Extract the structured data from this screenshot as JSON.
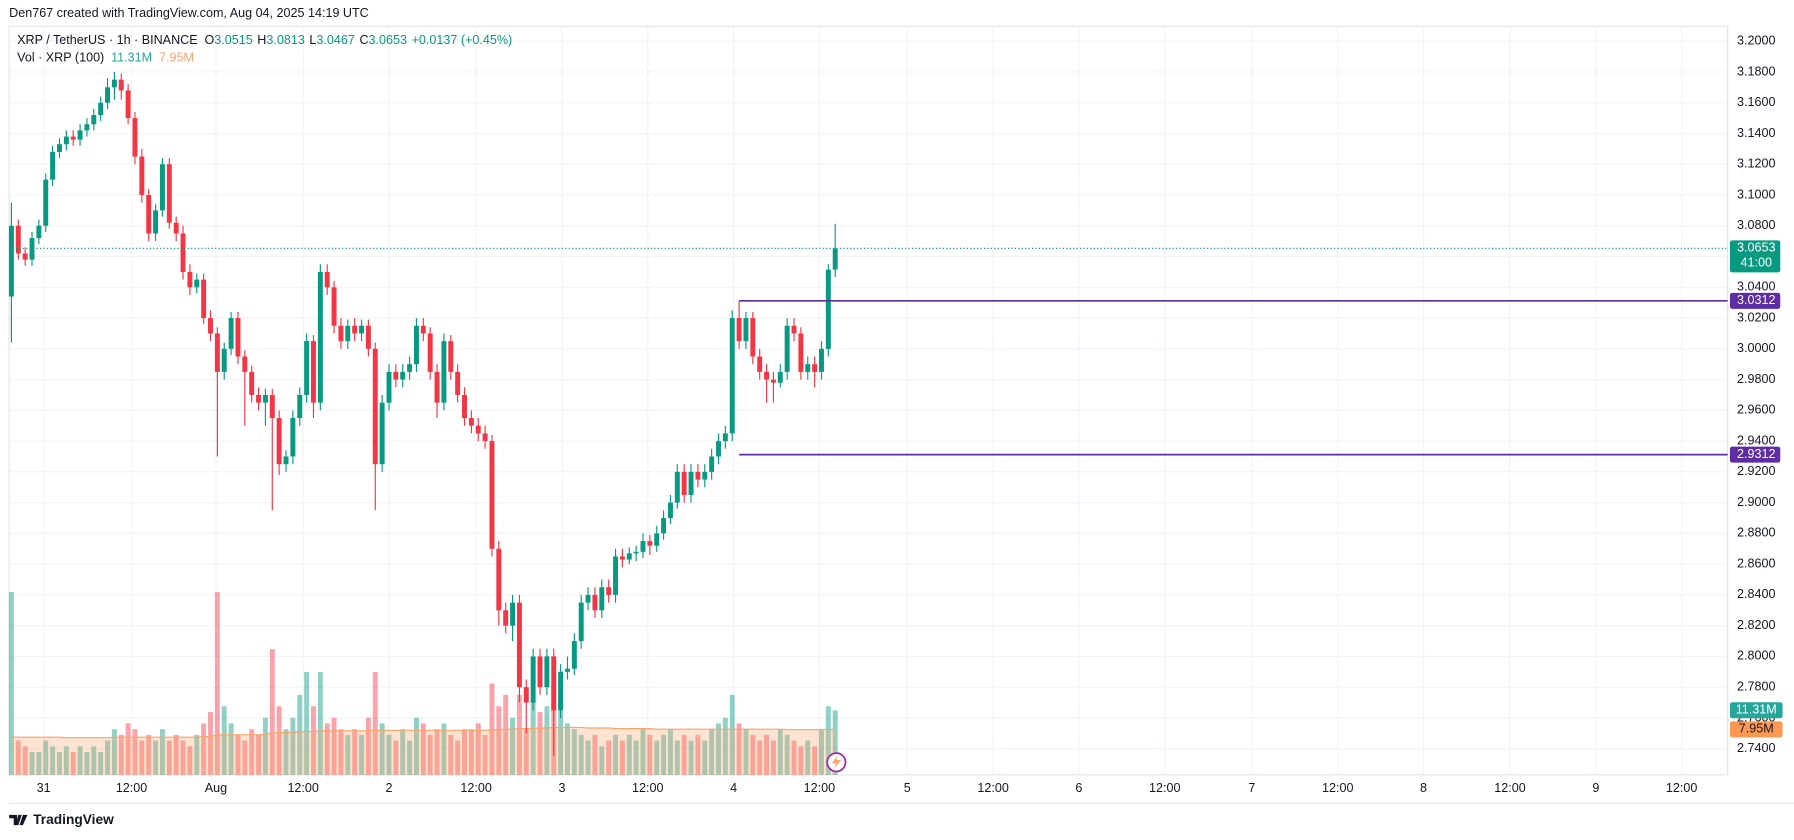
{
  "header": {
    "title": "Den767 created with TradingView.com, Aug 04, 2025 14:19 UTC"
  },
  "footer": {
    "brand": "TradingView"
  },
  "chart_data": {
    "type": "candlestick",
    "symbol": "XRP / TetherUS · 1h · BINANCE",
    "legend": [
      {
        "key": "O",
        "value": 3.0515
      },
      {
        "key": "H",
        "value": 3.0813
      },
      {
        "key": "L",
        "value": 3.0467
      },
      {
        "key": "C",
        "value": 3.0653
      }
    ],
    "change": "+0.0137 (+0.45%)",
    "up_color": "#089981",
    "down_color": "#f23645",
    "ohlc": [
      [
        3.034,
        3.095,
        3.004,
        3.08
      ],
      [
        3.08,
        3.084,
        3.058,
        3.062
      ],
      [
        3.062,
        3.066,
        3.054,
        3.058
      ],
      [
        3.058,
        3.076,
        3.054,
        3.072
      ],
      [
        3.072,
        3.084,
        3.068,
        3.08
      ],
      [
        3.08,
        3.114,
        3.076,
        3.11
      ],
      [
        3.11,
        3.132,
        3.106,
        3.128
      ],
      [
        3.128,
        3.137,
        3.124,
        3.133
      ],
      [
        3.133,
        3.142,
        3.129,
        3.138
      ],
      [
        3.138,
        3.142,
        3.132,
        3.136
      ],
      [
        3.136,
        3.146,
        3.132,
        3.142
      ],
      [
        3.142,
        3.15,
        3.138,
        3.146
      ],
      [
        3.146,
        3.156,
        3.142,
        3.152
      ],
      [
        3.152,
        3.164,
        3.148,
        3.16
      ],
      [
        3.16,
        3.176,
        3.156,
        3.17
      ],
      [
        3.17,
        3.18,
        3.162,
        3.175
      ],
      [
        3.175,
        3.179,
        3.162,
        3.168
      ],
      [
        3.168,
        3.172,
        3.146,
        3.15
      ],
      [
        3.15,
        3.154,
        3.12,
        3.125
      ],
      [
        3.125,
        3.13,
        3.095,
        3.1
      ],
      [
        3.1,
        3.104,
        3.07,
        3.075
      ],
      [
        3.075,
        3.094,
        3.07,
        3.09
      ],
      [
        3.09,
        3.124,
        3.086,
        3.12
      ],
      [
        3.12,
        3.124,
        3.078,
        3.082
      ],
      [
        3.082,
        3.086,
        3.07,
        3.075
      ],
      [
        3.075,
        3.08,
        3.045,
        3.05
      ],
      [
        3.05,
        3.055,
        3.035,
        3.04
      ],
      [
        3.04,
        3.049,
        3.036,
        3.045
      ],
      [
        3.045,
        3.049,
        3.016,
        3.02
      ],
      [
        3.02,
        3.025,
        3.005,
        3.01
      ],
      [
        3.01,
        3.014,
        2.93,
        2.985
      ],
      [
        2.985,
        3.004,
        2.98,
        3.0
      ],
      [
        3.0,
        3.024,
        2.996,
        3.02
      ],
      [
        3.02,
        3.024,
        2.99,
        2.995
      ],
      [
        2.995,
        2.999,
        2.95,
        2.985
      ],
      [
        2.985,
        2.989,
        2.965,
        2.97
      ],
      [
        2.97,
        2.975,
        2.96,
        2.965
      ],
      [
        2.965,
        2.974,
        2.95,
        2.97
      ],
      [
        2.97,
        2.974,
        2.895,
        2.955
      ],
      [
        2.955,
        2.96,
        2.918,
        2.925
      ],
      [
        2.925,
        2.934,
        2.92,
        2.93
      ],
      [
        2.93,
        2.96,
        2.925,
        2.955
      ],
      [
        2.955,
        2.975,
        2.95,
        2.97
      ],
      [
        2.97,
        3.01,
        2.965,
        3.005
      ],
      [
        3.005,
        3.009,
        2.955,
        2.965
      ],
      [
        2.965,
        3.055,
        2.96,
        3.05
      ],
      [
        3.05,
        3.055,
        3.035,
        3.04
      ],
      [
        3.04,
        3.044,
        3.01,
        3.015
      ],
      [
        3.015,
        3.02,
        3.0,
        3.005
      ],
      [
        3.005,
        3.019,
        3.0,
        3.015
      ],
      [
        3.015,
        3.02,
        3.005,
        3.01
      ],
      [
        3.01,
        3.019,
        3.005,
        3.015
      ],
      [
        3.015,
        3.019,
        2.995,
        3.0
      ],
      [
        3.0,
        3.004,
        2.895,
        2.925
      ],
      [
        2.925,
        2.97,
        2.92,
        2.965
      ],
      [
        2.965,
        2.99,
        2.96,
        2.985
      ],
      [
        2.985,
        2.99,
        2.975,
        2.98
      ],
      [
        2.98,
        2.99,
        2.975,
        2.985
      ],
      [
        2.985,
        2.995,
        2.98,
        2.99
      ],
      [
        2.99,
        3.02,
        2.985,
        3.015
      ],
      [
        3.015,
        3.02,
        3.005,
        3.01
      ],
      [
        3.01,
        3.014,
        2.98,
        2.985
      ],
      [
        2.985,
        2.99,
        2.955,
        2.965
      ],
      [
        2.965,
        3.01,
        2.96,
        3.005
      ],
      [
        3.005,
        3.009,
        2.98,
        2.985
      ],
      [
        2.985,
        2.99,
        2.965,
        2.97
      ],
      [
        2.97,
        2.975,
        2.95,
        2.955
      ],
      [
        2.955,
        2.96,
        2.945,
        2.95
      ],
      [
        2.95,
        2.955,
        2.94,
        2.945
      ],
      [
        2.945,
        2.95,
        2.935,
        2.94
      ],
      [
        2.94,
        2.944,
        2.865,
        2.87
      ],
      [
        2.87,
        2.875,
        2.82,
        2.83
      ],
      [
        2.83,
        2.835,
        2.815,
        2.82
      ],
      [
        2.82,
        2.84,
        2.81,
        2.835
      ],
      [
        2.835,
        2.84,
        2.77,
        2.78
      ],
      [
        2.78,
        2.785,
        2.75,
        2.77
      ],
      [
        2.77,
        2.805,
        2.765,
        2.8
      ],
      [
        2.8,
        2.805,
        2.775,
        2.78
      ],
      [
        2.78,
        2.805,
        2.775,
        2.8
      ],
      [
        2.8,
        2.805,
        2.735,
        2.765
      ],
      [
        2.765,
        2.795,
        2.76,
        2.79
      ],
      [
        2.79,
        2.8,
        2.785,
        2.792
      ],
      [
        2.792,
        2.815,
        2.788,
        2.81
      ],
      [
        2.81,
        2.84,
        2.805,
        2.835
      ],
      [
        2.835,
        2.845,
        2.83,
        2.84
      ],
      [
        2.84,
        2.845,
        2.825,
        2.83
      ],
      [
        2.83,
        2.85,
        2.825,
        2.845
      ],
      [
        2.845,
        2.85,
        2.835,
        2.84
      ],
      [
        2.84,
        2.87,
        2.835,
        2.865
      ],
      [
        2.865,
        2.87,
        2.858,
        2.863
      ],
      [
        2.863,
        2.871,
        2.86,
        2.867
      ],
      [
        2.867,
        2.872,
        2.862,
        2.868
      ],
      [
        2.868,
        2.88,
        2.864,
        2.875
      ],
      [
        2.875,
        2.879,
        2.866,
        2.872
      ],
      [
        2.872,
        2.885,
        2.868,
        2.88
      ],
      [
        2.88,
        2.895,
        2.876,
        2.89
      ],
      [
        2.89,
        2.905,
        2.886,
        2.9
      ],
      [
        2.9,
        2.925,
        2.896,
        2.92
      ],
      [
        2.92,
        2.925,
        2.9,
        2.905
      ],
      [
        2.905,
        2.925,
        2.9,
        2.92
      ],
      [
        2.92,
        2.925,
        2.91,
        2.915
      ],
      [
        2.915,
        2.925,
        2.91,
        2.92
      ],
      [
        2.92,
        2.935,
        2.915,
        2.93
      ],
      [
        2.93,
        2.945,
        2.925,
        2.94
      ],
      [
        2.94,
        2.95,
        2.935,
        2.945
      ],
      [
        2.945,
        3.025,
        2.94,
        3.02
      ],
      [
        3.02,
        3.031,
        3.0,
        3.005
      ],
      [
        3.005,
        3.024,
        3.0,
        3.02
      ],
      [
        3.02,
        3.024,
        2.99,
        2.995
      ],
      [
        2.995,
        3.0,
        2.98,
        2.985
      ],
      [
        2.985,
        2.99,
        2.965,
        2.98
      ],
      [
        2.98,
        2.985,
        2.965,
        2.978
      ],
      [
        2.978,
        2.99,
        2.975,
        2.985
      ],
      [
        2.985,
        3.02,
        2.98,
        3.015
      ],
      [
        3.015,
        3.02,
        3.005,
        3.01
      ],
      [
        3.01,
        3.014,
        2.98,
        2.985
      ],
      [
        2.985,
        2.995,
        2.98,
        2.99
      ],
      [
        2.99,
        2.995,
        2.975,
        2.985
      ],
      [
        2.985,
        3.005,
        2.98,
        3.0
      ],
      [
        3.0,
        3.055,
        2.995,
        3.0515
      ],
      [
        3.0515,
        3.0813,
        3.0467,
        3.0653
      ]
    ],
    "volume_title": "Vol · XRP (100)",
    "volume": {
      "values": [
        32,
        6,
        5,
        4,
        4,
        6,
        5,
        4,
        5,
        4,
        5,
        4,
        5,
        4,
        6,
        8,
        7,
        9,
        8,
        6,
        7,
        6,
        8,
        6,
        7,
        6,
        5,
        7,
        9,
        11,
        32,
        12,
        9,
        7,
        6,
        8,
        7,
        10,
        22,
        12,
        8,
        10,
        14,
        18,
        12,
        18,
        9,
        10,
        8,
        7,
        8,
        7,
        10,
        18,
        9,
        7,
        6,
        8,
        6,
        10,
        9,
        7,
        8,
        9,
        7,
        6,
        8,
        8,
        9,
        7,
        16,
        12,
        14,
        10,
        14,
        8,
        13,
        11,
        12,
        16,
        14,
        9,
        8,
        7,
        6,
        7,
        5,
        6,
        7,
        6,
        7,
        6,
        8,
        7,
        6,
        7,
        8,
        6,
        7,
        6,
        7,
        6,
        8,
        9,
        10,
        14,
        9,
        8,
        7,
        6,
        7,
        6,
        8,
        7,
        6,
        5,
        6,
        5,
        8,
        12,
        11.31
      ],
      "last_label": "11.31M",
      "color": "#26a69a"
    },
    "volume_ma": {
      "values": [
        6.6,
        6.6,
        6.6,
        6.6,
        6.6,
        6.6,
        6.6,
        6.6,
        6.5,
        6.5,
        6.5,
        6.5,
        6.5,
        6.5,
        6.5,
        6.6,
        6.6,
        6.6,
        6.6,
        6.6,
        6.6,
        6.6,
        6.6,
        6.6,
        6.6,
        6.6,
        6.6,
        6.6,
        6.7,
        6.7,
        7.0,
        7.0,
        7.0,
        7.0,
        7.0,
        7.0,
        7.0,
        7.1,
        7.3,
        7.4,
        7.4,
        7.5,
        7.5,
        7.6,
        7.6,
        7.7,
        7.7,
        7.7,
        7.7,
        7.7,
        7.7,
        7.7,
        7.7,
        7.8,
        7.8,
        7.8,
        7.8,
        7.8,
        7.8,
        7.8,
        7.8,
        7.8,
        7.8,
        7.8,
        7.8,
        7.8,
        7.8,
        7.8,
        7.8,
        7.8,
        7.9,
        7.9,
        8.0,
        8.0,
        8.1,
        8.1,
        8.1,
        8.2,
        8.2,
        8.3,
        8.3,
        8.3,
        8.3,
        8.3,
        8.2,
        8.2,
        8.2,
        8.2,
        8.1,
        8.1,
        8.1,
        8.1,
        8.1,
        8.1,
        8.0,
        8.0,
        8.0,
        8.0,
        8.0,
        8.0,
        8.0,
        8.0,
        8.0,
        8.0,
        8.0,
        8.0,
        8.0,
        8.0,
        8.0,
        8.0,
        8.0,
        8.0,
        8.0,
        7.9,
        7.9,
        7.9,
        7.9,
        7.9,
        7.95,
        7.95,
        7.95
      ],
      "last_label": "7.95M",
      "color": "#f7a46b"
    },
    "vlim": [
      0,
      131
    ],
    "xlim": [
      -0.33,
      250
    ],
    "xticks": [
      {
        "value": 4.7,
        "label": "31"
      },
      {
        "value": 17.5,
        "label": "12:00"
      },
      {
        "value": 29.8,
        "label": "Aug"
      },
      {
        "value": 42.5,
        "label": "12:00"
      },
      {
        "value": 55,
        "label": "2"
      },
      {
        "value": 67.7,
        "label": "12:00"
      },
      {
        "value": 80.2,
        "label": "3"
      },
      {
        "value": 92.7,
        "label": "12:00"
      },
      {
        "value": 105.2,
        "label": "4"
      },
      {
        "value": 117.7,
        "label": "12:00"
      },
      {
        "value": 130.5,
        "label": "5"
      },
      {
        "value": 143,
        "label": "12:00"
      },
      {
        "value": 155.5,
        "label": "6"
      },
      {
        "value": 168,
        "label": "12:00"
      },
      {
        "value": 180.7,
        "label": "7"
      },
      {
        "value": 193.2,
        "label": "12:00"
      },
      {
        "value": 205.7,
        "label": "8"
      },
      {
        "value": 218.3,
        "label": "12:00"
      },
      {
        "value": 230.8,
        "label": "9"
      },
      {
        "value": 243.3,
        "label": "12:00"
      }
    ],
    "ylim": [
      2.723,
      3.2097
    ],
    "yticks": [
      {
        "value": 2.74,
        "label": "2.7400"
      },
      {
        "value": 2.76,
        "label": "2.7600"
      },
      {
        "value": 2.78,
        "label": "2.7800"
      },
      {
        "value": 2.8,
        "label": "2.8000"
      },
      {
        "value": 2.82,
        "label": "2.8200"
      },
      {
        "value": 2.84,
        "label": "2.8400"
      },
      {
        "value": 2.86,
        "label": "2.8600"
      },
      {
        "value": 2.88,
        "label": "2.8800"
      },
      {
        "value": 2.9,
        "label": "2.9000"
      },
      {
        "value": 2.92,
        "label": "2.9200"
      },
      {
        "value": 2.94,
        "label": "2.9400"
      },
      {
        "value": 2.96,
        "label": "2.9600"
      },
      {
        "value": 2.98,
        "label": "2.9800"
      },
      {
        "value": 3.0,
        "label": "3.0000"
      },
      {
        "value": 3.02,
        "label": "3.0200"
      },
      {
        "value": 3.04,
        "label": "3.0400"
      },
      {
        "value": 3.06,
        "label": "3.0600"
      },
      {
        "value": 3.08,
        "label": "3.0800"
      },
      {
        "value": 3.1,
        "label": "3.1000"
      },
      {
        "value": 3.12,
        "label": "3.1200"
      },
      {
        "value": 3.14,
        "label": "3.1400"
      },
      {
        "value": 3.16,
        "label": "3.1600"
      },
      {
        "value": 3.18,
        "label": "3.1800"
      },
      {
        "value": 3.2,
        "label": "3.2000"
      }
    ],
    "grid": true,
    "last_price": 3.0653,
    "countdown": "41:00",
    "hlines": [
      {
        "value": 3.0312,
        "start": 106
      },
      {
        "value": 2.9312,
        "start": 106
      }
    ],
    "hline_color": "#5e2ca5"
  }
}
